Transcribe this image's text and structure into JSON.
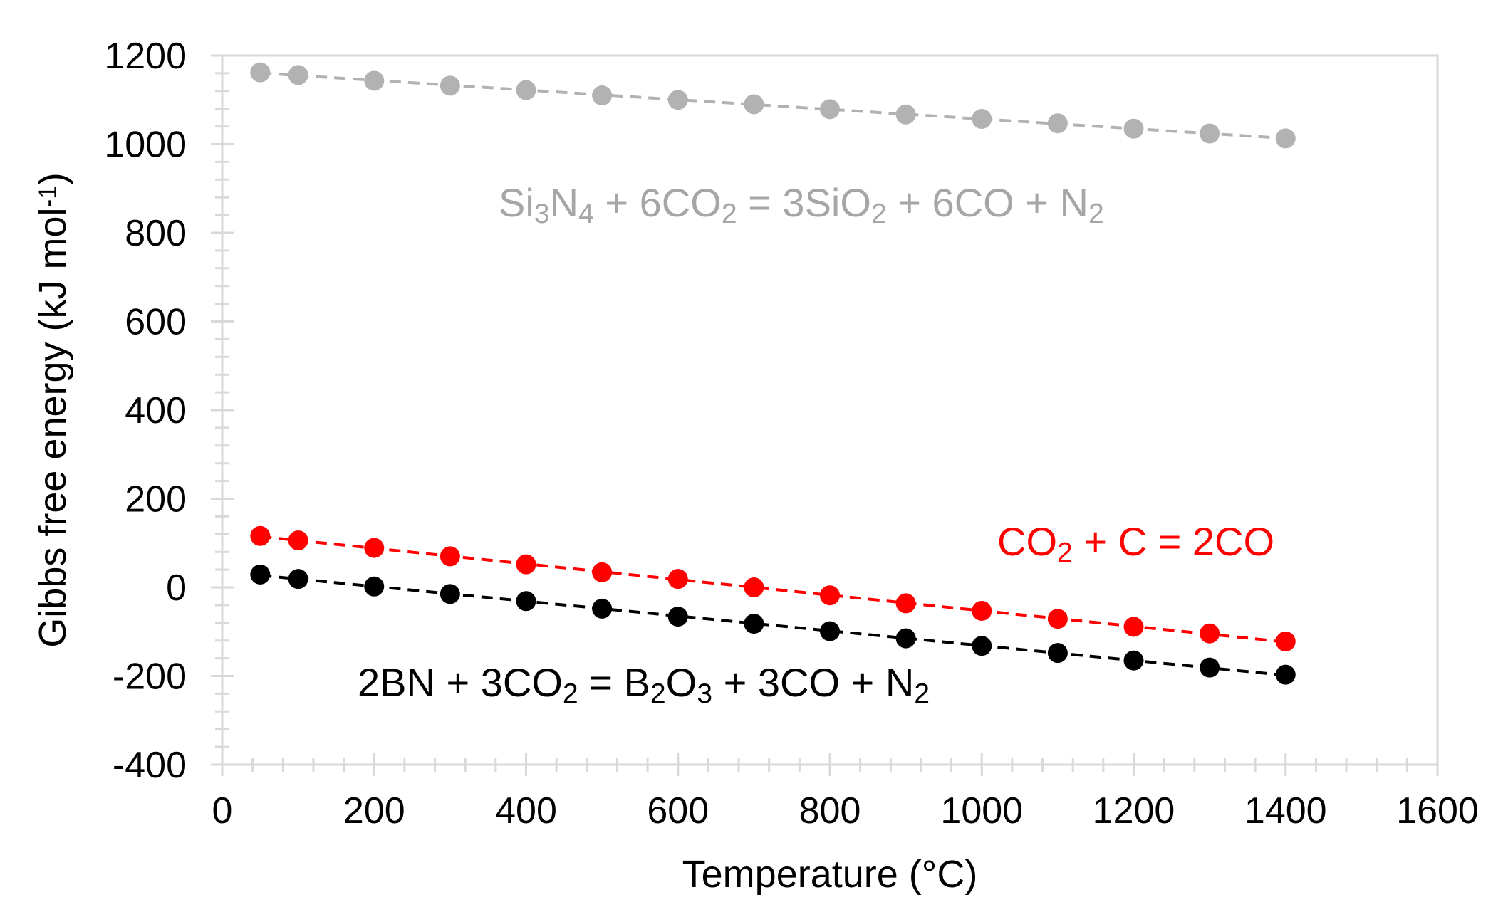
{
  "chart_data": {
    "type": "scatter",
    "title": "",
    "xlabel": "Temperature (°C)",
    "ylabel": "Gibbs free energy (kJ mol⁻¹)",
    "xlim": [
      0,
      1600
    ],
    "ylim": [
      -400,
      1200
    ],
    "xticks": [
      "0",
      "200",
      "400",
      "600",
      "800",
      "1000",
      "1200",
      "1400",
      "1600"
    ],
    "yticks": [
      "-400",
      "-200",
      "0",
      "200",
      "400",
      "600",
      "800",
      "1000",
      "1200"
    ],
    "grid": false,
    "series": [
      {
        "name": "Si3N4 + 6CO2 = 3SiO2 + 6CO + N2",
        "color": "#b2b2b2",
        "x": [
          50,
          100,
          200,
          300,
          400,
          500,
          600,
          700,
          800,
          900,
          1000,
          1100,
          1200,
          1300,
          1400
        ],
        "y": [
          1162,
          1156,
          1143,
          1132,
          1122,
          1110,
          1100,
          1090,
          1079,
          1067,
          1057,
          1047,
          1035,
          1024,
          1013
        ]
      },
      {
        "name": "CO2 + C = 2CO",
        "color": "#ff0000",
        "x": [
          50,
          100,
          200,
          300,
          400,
          500,
          600,
          700,
          800,
          900,
          1000,
          1100,
          1200,
          1300,
          1400
        ],
        "y": [
          116,
          106,
          89,
          70,
          52,
          34,
          19,
          0,
          -18,
          -36,
          -53,
          -71,
          -89,
          -104,
          -122
        ]
      },
      {
        "name": "2BN + 3CO2 = B2O3 + 3CO + N2",
        "color": "#000000",
        "x": [
          50,
          100,
          200,
          300,
          400,
          500,
          600,
          700,
          800,
          900,
          1000,
          1100,
          1200,
          1300,
          1400
        ],
        "y": [
          29,
          19,
          2,
          -15,
          -31,
          -48,
          -66,
          -82,
          -99,
          -115,
          -132,
          -148,
          -165,
          -181,
          -197
        ]
      }
    ],
    "annotations": {
      "si3n4": {
        "color": "#a6a6a6",
        "parts": [
          {
            "t": "Si",
            "s": "n"
          },
          {
            "t": "3",
            "s": "sub"
          },
          {
            "t": "N",
            "s": "n"
          },
          {
            "t": "4",
            "s": "sub"
          },
          {
            "t": " + 6CO",
            "s": "n"
          },
          {
            "t": "2",
            "s": "sub"
          },
          {
            "t": " = 3SiO",
            "s": "n"
          },
          {
            "t": "2",
            "s": "sub"
          },
          {
            "t": " + 6CO + N",
            "s": "n"
          },
          {
            "t": "2",
            "s": "sub"
          }
        ]
      },
      "co2c": {
        "color": "#ff0000",
        "parts": [
          {
            "t": "CO",
            "s": "n"
          },
          {
            "t": "2",
            "s": "sub"
          },
          {
            "t": " + C = 2CO",
            "s": "n"
          }
        ]
      },
      "bn": {
        "color": "#000000",
        "parts": [
          {
            "t": "2BN + 3CO",
            "s": "n"
          },
          {
            "t": "2",
            "s": "sub"
          },
          {
            "t": " = B",
            "s": "n"
          },
          {
            "t": "2",
            "s": "sub"
          },
          {
            "t": "O",
            "s": "n"
          },
          {
            "t": "3",
            "s": "sub"
          },
          {
            "t": " + 3CO + N",
            "s": "n"
          },
          {
            "t": "2",
            "s": "sub"
          }
        ]
      }
    },
    "ylabel_parts": [
      {
        "t": "Gibbs free energy (kJ mol",
        "s": "n"
      },
      {
        "t": "-1",
        "s": "sup"
      },
      {
        "t": ")",
        "s": "n"
      }
    ]
  }
}
